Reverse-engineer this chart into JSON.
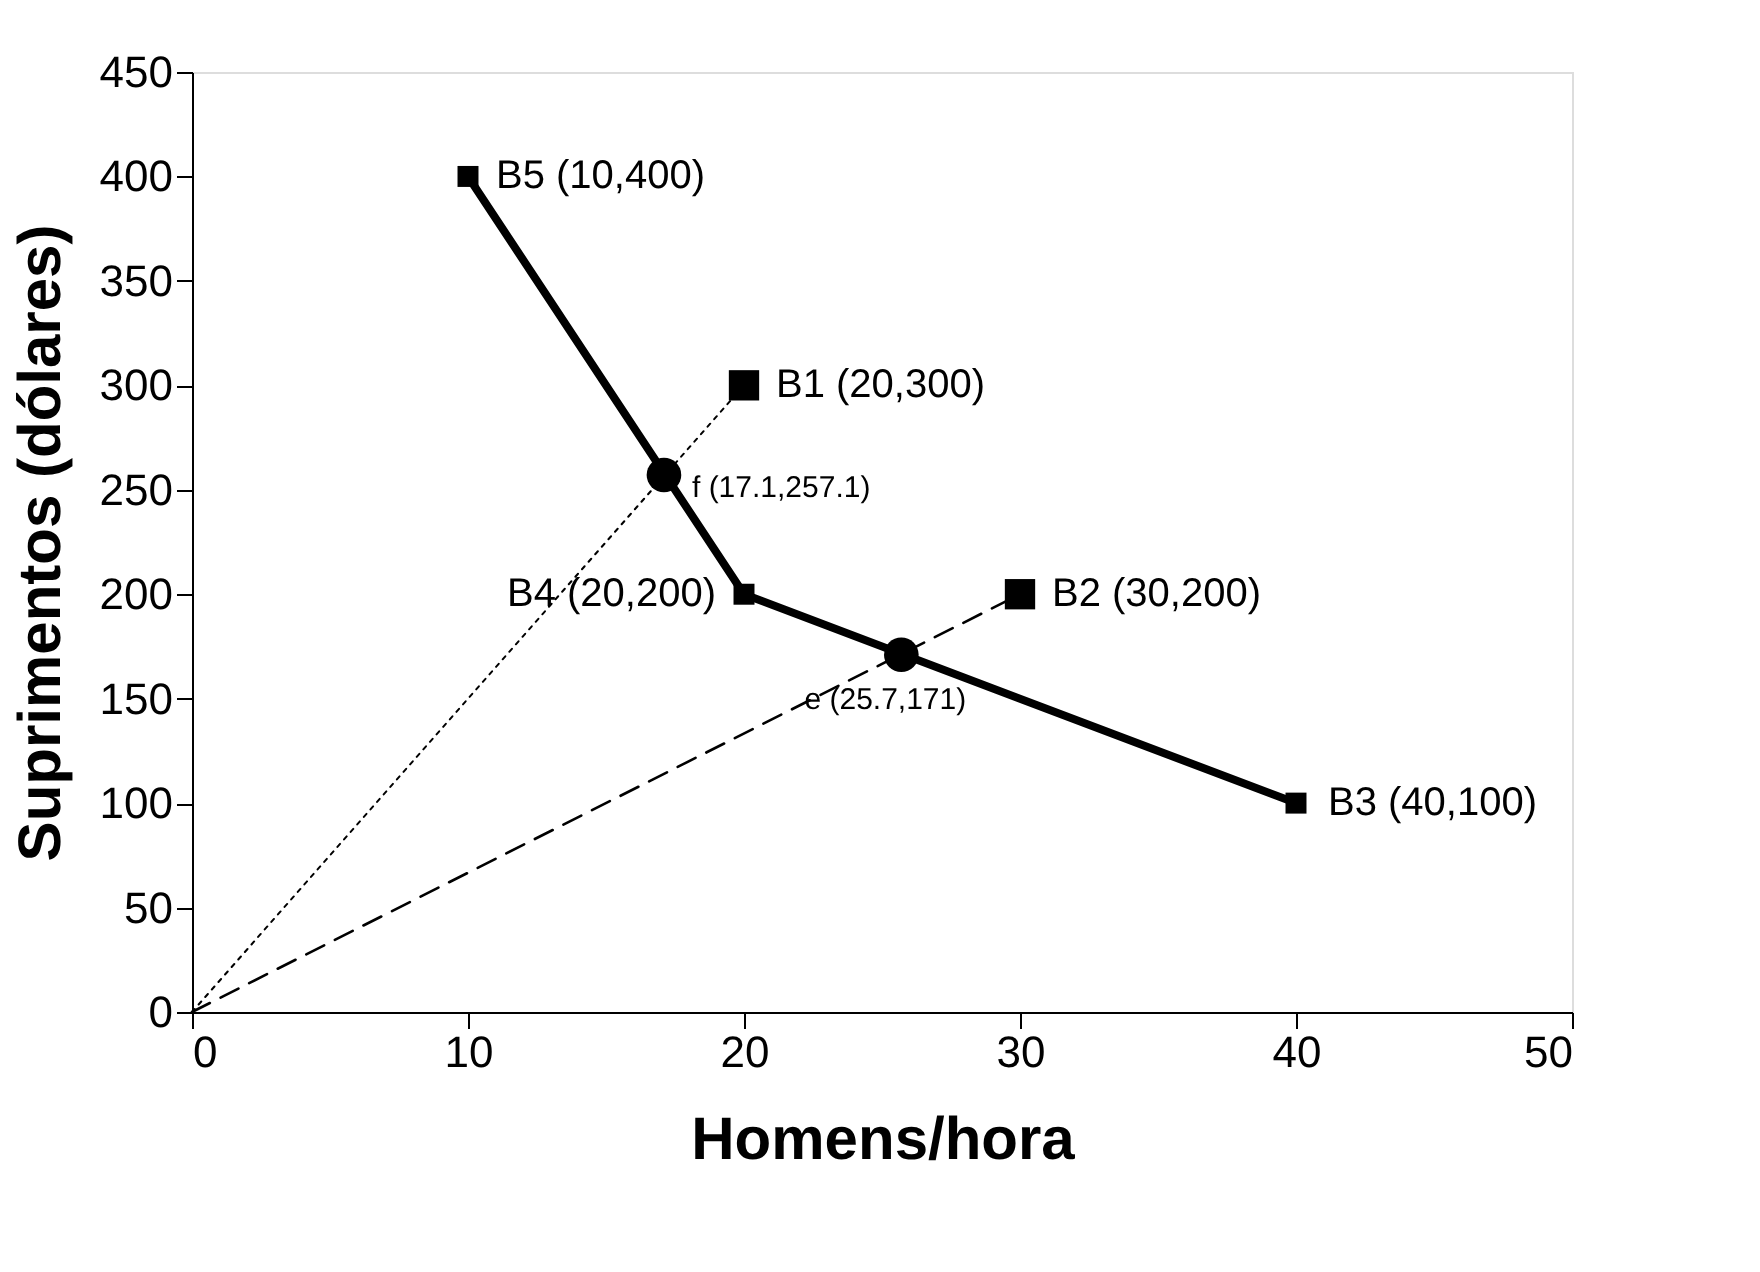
{
  "chart_data": {
    "type": "line",
    "xlabel": "Homens/hora",
    "ylabel": "Suprimentos (dólares)",
    "xlim": [
      0,
      50
    ],
    "xticks": [
      0,
      10,
      20,
      30,
      40,
      50
    ],
    "ylim": [
      0,
      450
    ],
    "yticks": [
      0,
      50,
      100,
      150,
      200,
      250,
      300,
      350,
      400,
      450
    ],
    "grid": false,
    "series": [
      {
        "color": "#000000",
        "x": [
          10,
          20,
          40
        ],
        "values": [
          400,
          200,
          100
        ],
        "marker": "square",
        "line_style": "solid"
      },
      {
        "color": "#000000",
        "x": [
          0,
          20
        ],
        "values": [
          0,
          300
        ],
        "marker": "none",
        "line_style": "dotted"
      },
      {
        "color": "#000000",
        "x": [
          0,
          30
        ],
        "values": [
          0,
          200
        ],
        "marker": "none",
        "line_style": "dashed"
      },
      {
        "type": "scatter",
        "color": "#000000",
        "x": [
          20,
          30
        ],
        "values": [
          300,
          200
        ],
        "marker": "square"
      },
      {
        "type": "scatter",
        "color": "#000000",
        "x": [
          17.1,
          25.7
        ],
        "values": [
          257.1,
          171
        ],
        "marker": "circle"
      }
    ],
    "annotations": [
      {
        "text": "B5 (10,400)",
        "x": 10,
        "y": 400
      },
      {
        "text": "B1 (20,300)",
        "x": 20,
        "y": 300
      },
      {
        "text": "f (17.1,257.1)",
        "x": 17.1,
        "y": 257.1
      },
      {
        "text": "B4 (20,200)",
        "x": 20,
        "y": 200
      },
      {
        "text": "B2 (30,200)",
        "x": 30,
        "y": 200
      },
      {
        "text": "e (25.7,171)",
        "x": 25.7,
        "y": 171
      },
      {
        "text": "B3 (40,100)",
        "x": 40,
        "y": 100
      }
    ]
  }
}
